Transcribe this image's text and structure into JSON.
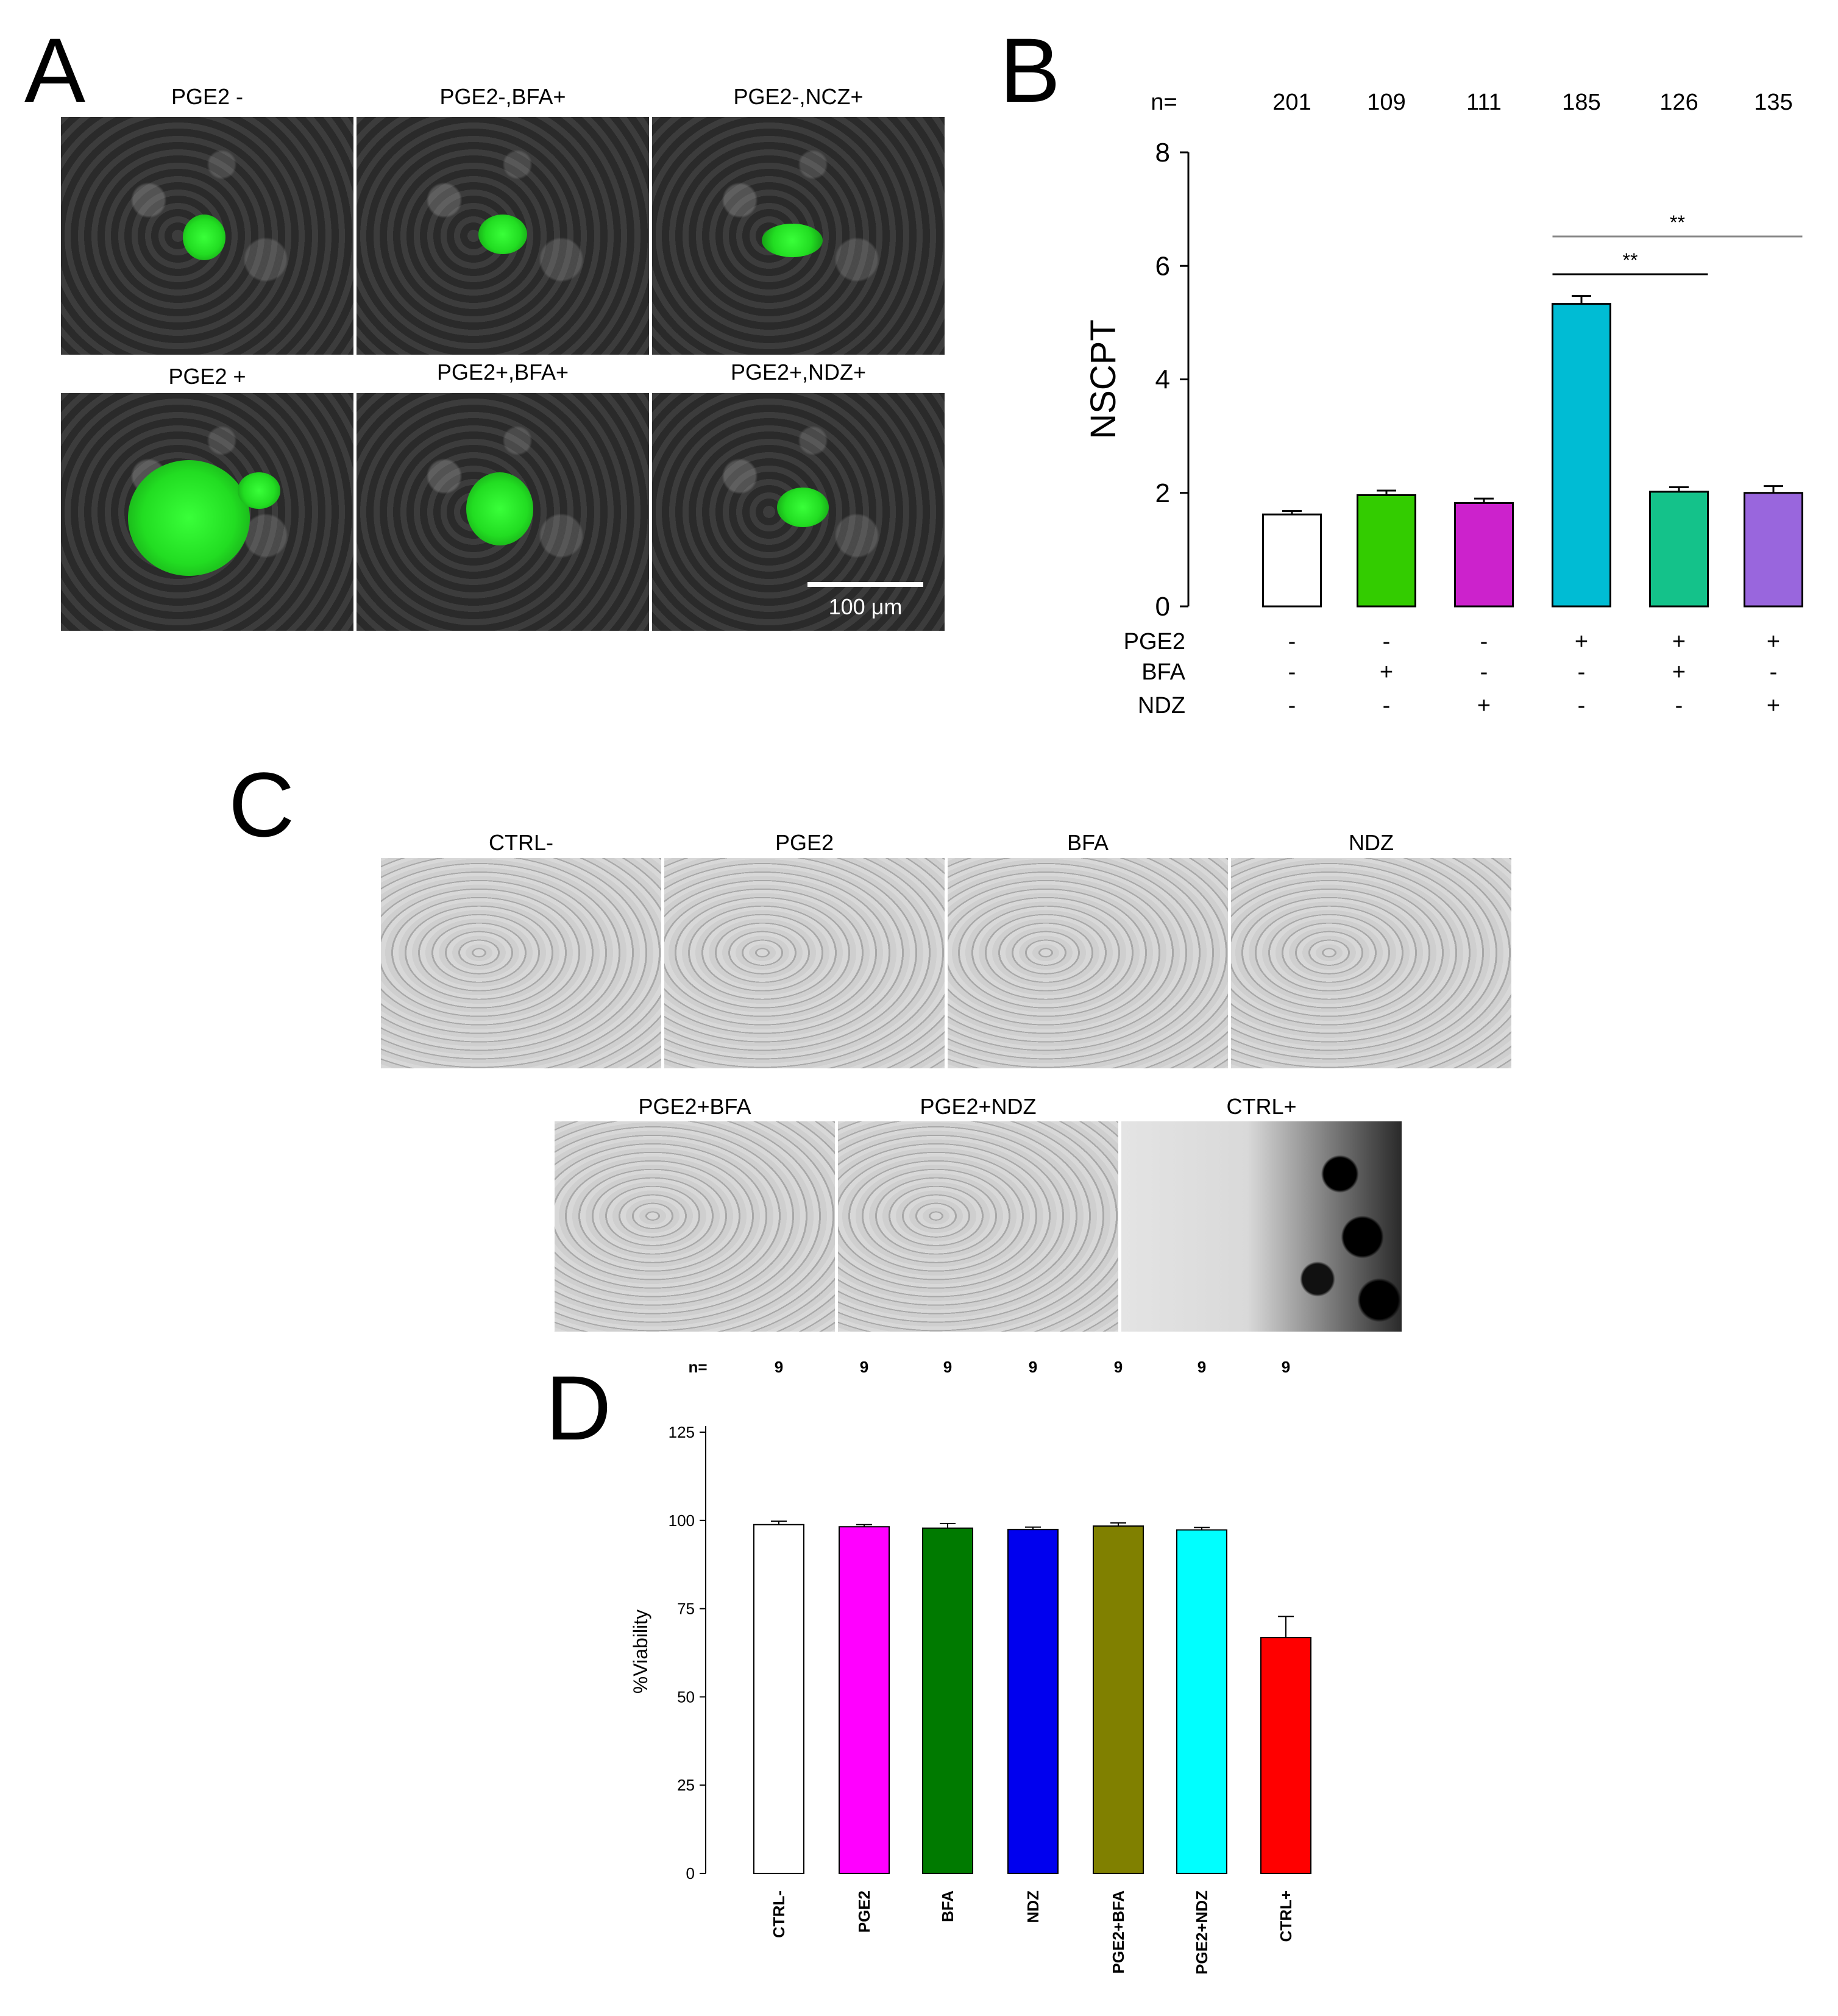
{
  "panels": {
    "a": {
      "letter": "A",
      "images": [
        {
          "label": "PGE2 -"
        },
        {
          "label": "PGE2-,BFA+"
        },
        {
          "label": "PGE2-,NCZ+"
        },
        {
          "label": "PGE2 +"
        },
        {
          "label": "PGE2+,BFA+"
        },
        {
          "label": "PGE2+,NDZ+"
        }
      ],
      "scale_bar": "100 μm"
    },
    "c": {
      "letter": "C",
      "images": [
        {
          "label": "CTRL-"
        },
        {
          "label": "PGE2"
        },
        {
          "label": "BFA"
        },
        {
          "label": "NDZ"
        },
        {
          "label": "PGE2+BFA"
        },
        {
          "label": "PGE2+NDZ"
        },
        {
          "label": "CTRL+"
        }
      ]
    }
  },
  "chart_data": [
    {
      "panel": "B",
      "type": "bar",
      "ylabel": "NSCPT",
      "ylim": [
        0,
        8
      ],
      "yticks": [
        "0",
        "2",
        "4",
        "6",
        "8"
      ],
      "n_label": "n=",
      "n_values": [
        "201",
        "109",
        "111",
        "185",
        "126",
        "135"
      ],
      "values": [
        1.62,
        1.96,
        1.82,
        5.33,
        2.02,
        2.0
      ],
      "errors": [
        0.06,
        0.08,
        0.08,
        0.14,
        0.08,
        0.12
      ],
      "colors": [
        "#ffffff",
        "#33cc00",
        "#cc22cc",
        "#00bcd4",
        "#14c28a",
        "#9966dd"
      ],
      "conditions": [
        {
          "name": "PGE2",
          "marks": [
            "-",
            "-",
            "-",
            "+",
            "+",
            "+"
          ]
        },
        {
          "name": "BFA",
          "marks": [
            "-",
            "+",
            "-",
            "-",
            "+",
            "-"
          ]
        },
        {
          "name": "NDZ",
          "marks": [
            "-",
            "-",
            "+",
            "-",
            "-",
            "+"
          ]
        }
      ],
      "significance": [
        {
          "from": 3,
          "to": 4,
          "label": "**"
        },
        {
          "from": 3,
          "to": 5,
          "label": "**"
        }
      ]
    },
    {
      "panel": "D",
      "type": "bar",
      "ylabel": "%Viability",
      "ylim": [
        0,
        125
      ],
      "yticks": [
        "0",
        "25",
        "50",
        "75",
        "100",
        "125"
      ],
      "n_label": "n=",
      "n_values": [
        "9",
        "9",
        "9",
        "9",
        "9",
        "9",
        "9"
      ],
      "categories": [
        "CTRL-",
        "PGE2",
        "BFA",
        "NDZ",
        "PGE2+BFA",
        "PGE2+NDZ",
        "CTRL+"
      ],
      "values": [
        98.8,
        98.2,
        97.8,
        97.4,
        98.4,
        97.3,
        66.8
      ],
      "errors": [
        1.0,
        0.6,
        1.3,
        0.7,
        0.9,
        0.7,
        6.0
      ],
      "colors": [
        "#ffffff",
        "#ff00ff",
        "#007a00",
        "#0000ee",
        "#808000",
        "#00ffff",
        "#ff0000"
      ]
    }
  ]
}
